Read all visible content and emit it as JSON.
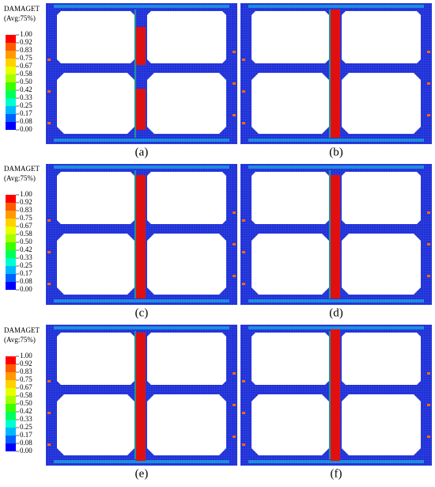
{
  "legends": [
    {
      "title": "DAMAGET",
      "subtitle": "(Avg:75%)",
      "ticks": [
        "1.00",
        "0.92",
        "0.83",
        "0.75",
        "0.67",
        "0.58",
        "0.50",
        "0.42",
        "0.33",
        "0.25",
        "0.17",
        "0.08",
        "0.00"
      ]
    },
    {
      "title": "DAMAGET",
      "subtitle": "(Avg:75%)",
      "ticks": [
        "1.00",
        "0.92",
        "0.83",
        "0.75",
        "0.67",
        "0.58",
        "0.50",
        "0.42",
        "0.33",
        "0.25",
        "0.17",
        "0.08",
        "0.00"
      ]
    },
    {
      "title": "DAMAGET",
      "subtitle": "(Avg:75%)",
      "ticks": [
        "1.00",
        "0.92",
        "0.83",
        "0.75",
        "0.67",
        "0.58",
        "0.50",
        "0.42",
        "0.33",
        "0.25",
        "0.17",
        "0.08",
        "0.00"
      ]
    }
  ],
  "panels": [
    {
      "label": "(a)"
    },
    {
      "label": "(b)"
    },
    {
      "label": "(c)"
    },
    {
      "label": "(d)"
    },
    {
      "label": "(e)"
    },
    {
      "label": "(f)"
    }
  ]
}
